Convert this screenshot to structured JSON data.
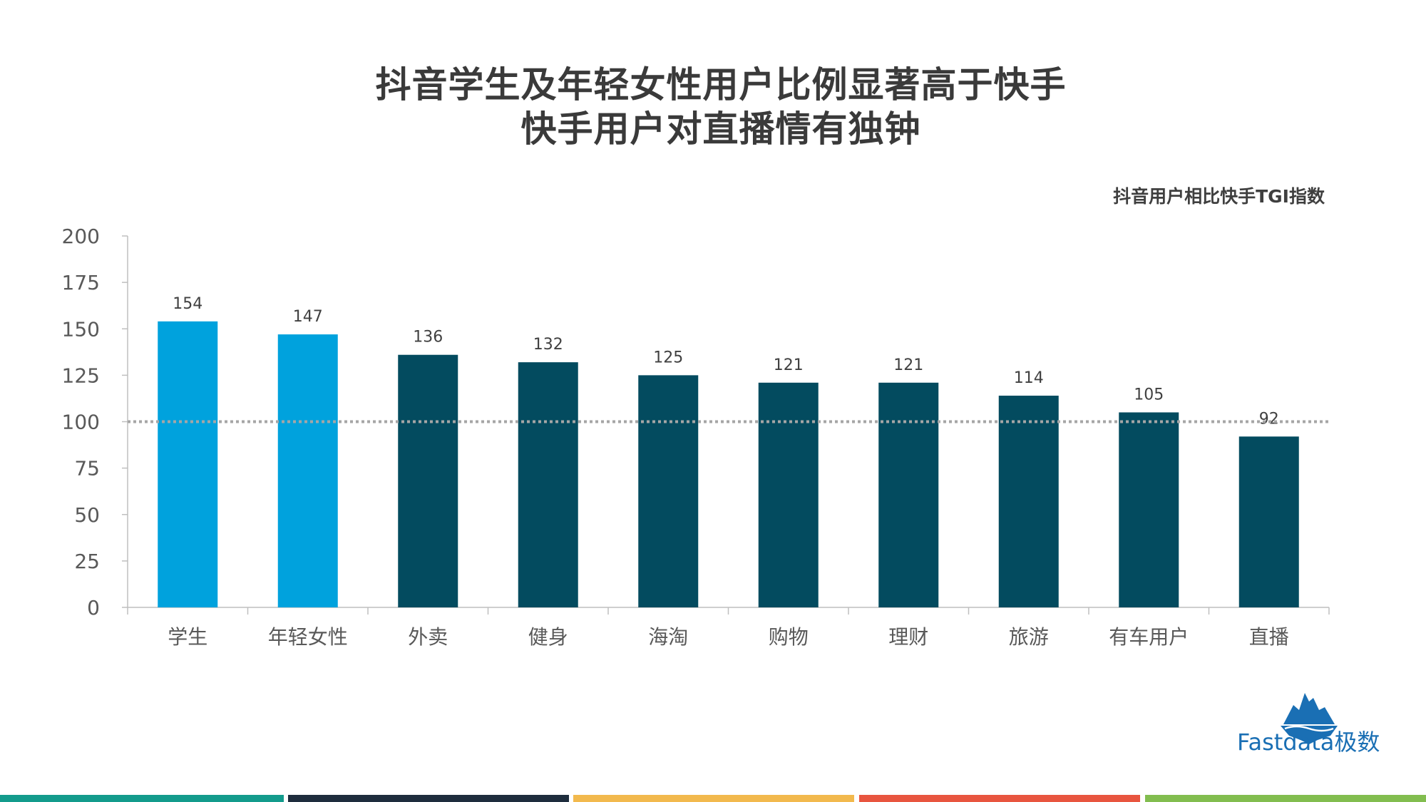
{
  "title_line1": "抖音学生及年轻女性用户比例显著高于快手",
  "title_line2": "快手用户对直播情有独钟",
  "logo_text": "Fastdata极数",
  "colors": {
    "highlight": "#00a2dd",
    "primary": "#034b5f",
    "reference_line": "#a6a6a6",
    "bottom_bar": [
      "#139b8c",
      "#1e2d3d",
      "#f2b94d",
      "#e8553f",
      "#82bd4f"
    ]
  },
  "chart_data": {
    "type": "bar",
    "title": "抖音用户相比快手TGI指数",
    "categories": [
      "学生",
      "年轻女性",
      "外卖",
      "健身",
      "海淘",
      "购物",
      "理财",
      "旅游",
      "有车用户",
      "直播"
    ],
    "values": [
      154,
      147,
      136,
      132,
      125,
      121,
      121,
      114,
      105,
      92
    ],
    "highlighted_categories": [
      "学生",
      "年轻女性"
    ],
    "ylim": [
      0,
      200
    ],
    "yticks": [
      0,
      25,
      50,
      75,
      100,
      125,
      150,
      175,
      200
    ],
    "reference_line": 100,
    "xlabel": "",
    "ylabel": "",
    "grid": false
  }
}
